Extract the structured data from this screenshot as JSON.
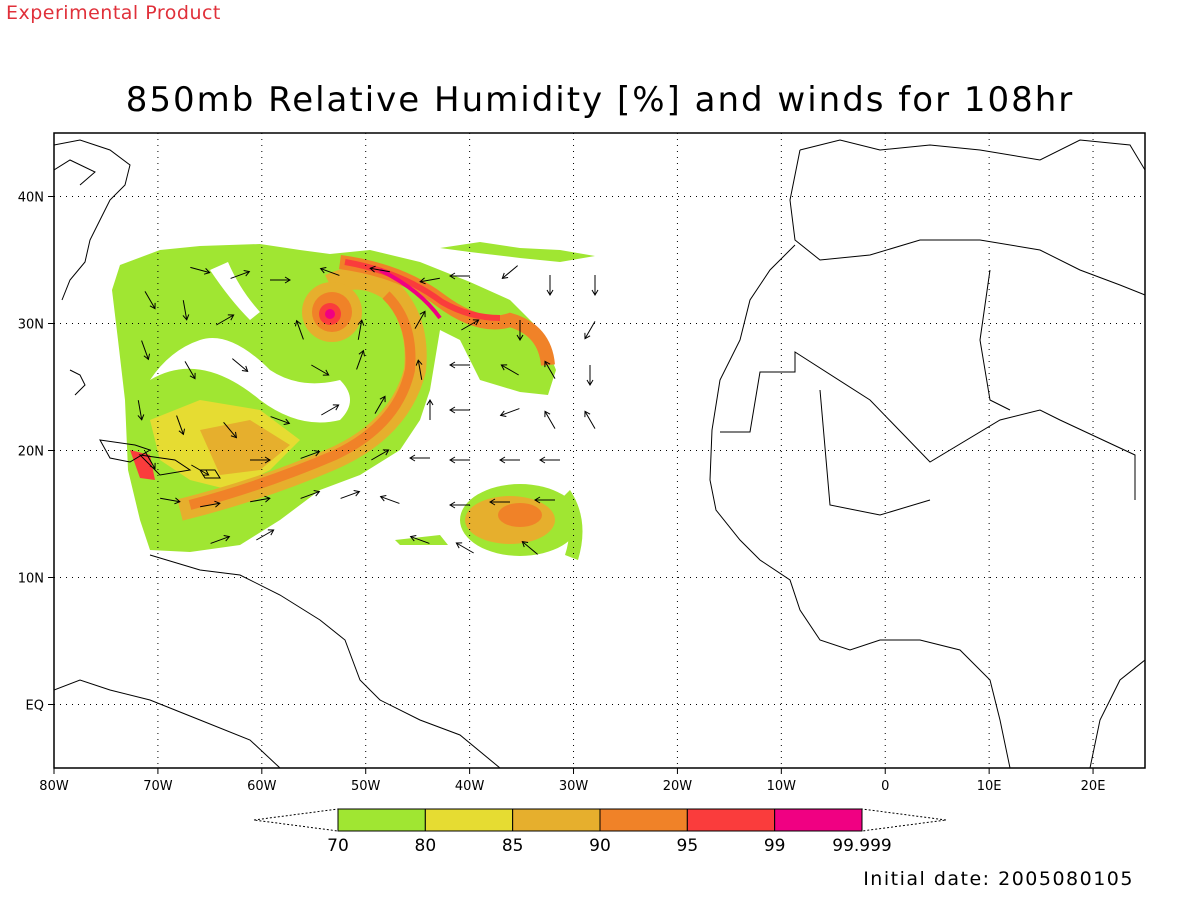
{
  "header": {
    "tag": "Experimental Product",
    "title": "850mb Relative Humidity [%] and winds for 108hr"
  },
  "footer": {
    "initial_date": "Initial date: 2005080105"
  },
  "map": {
    "extent": {
      "lon": [
        -80,
        25
      ],
      "lat": [
        -5,
        45
      ]
    },
    "lon_ticks": [
      {
        "lon": -80,
        "label": "80W"
      },
      {
        "lon": -70,
        "label": "70W"
      },
      {
        "lon": -60,
        "label": "60W"
      },
      {
        "lon": -50,
        "label": "50W"
      },
      {
        "lon": -40,
        "label": "40W"
      },
      {
        "lon": -30,
        "label": "30W"
      },
      {
        "lon": -20,
        "label": "20W"
      },
      {
        "lon": -10,
        "label": "10W"
      },
      {
        "lon": 0,
        "label": "0"
      },
      {
        "lon": 10,
        "label": "10E"
      },
      {
        "lon": 20,
        "label": "20E"
      }
    ],
    "lat_ticks": [
      {
        "lat": 40,
        "label": "40N"
      },
      {
        "lat": 30,
        "label": "30N"
      },
      {
        "lat": 20,
        "label": "20N"
      },
      {
        "lat": 10,
        "label": "10N"
      },
      {
        "lat": 0,
        "label": "EQ"
      }
    ],
    "grid": "dotted"
  },
  "colorbar": {
    "labels": [
      "70",
      "80",
      "85",
      "90",
      "95",
      "99",
      "99.999"
    ],
    "colors": [
      "#a0e632",
      "#e6dc32",
      "#e6af2d",
      "#f08228",
      "#fa3c3c",
      "#f00082"
    ]
  }
}
